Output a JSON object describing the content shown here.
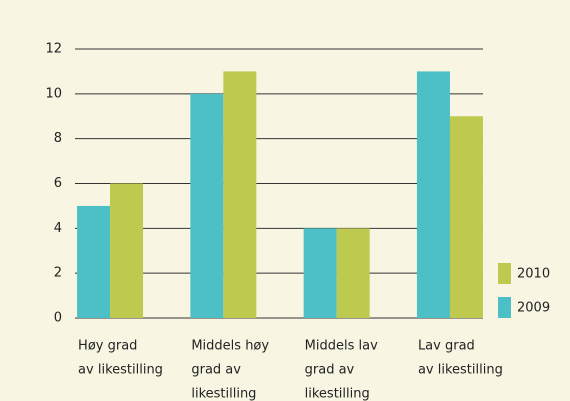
{
  "chart_data": {
    "type": "bar",
    "categories": [
      [
        "Høy grad",
        "av likestilling"
      ],
      [
        "Middels høy",
        "grad av",
        "likestilling"
      ],
      [
        "Middels lav",
        "grad av",
        "likestilling"
      ],
      [
        "Lav grad",
        "av likestilling"
      ]
    ],
    "series": [
      {
        "name": "2009",
        "color": "#4cc0c6",
        "values": [
          5,
          10,
          4,
          11
        ]
      },
      {
        "name": "2010",
        "color": "#bdc94f",
        "values": [
          6,
          11,
          4,
          9
        ]
      }
    ],
    "ylim": [
      0,
      12
    ],
    "yticks": [
      0,
      2,
      4,
      6,
      8,
      10,
      12
    ],
    "grid": true,
    "legend": "right"
  }
}
